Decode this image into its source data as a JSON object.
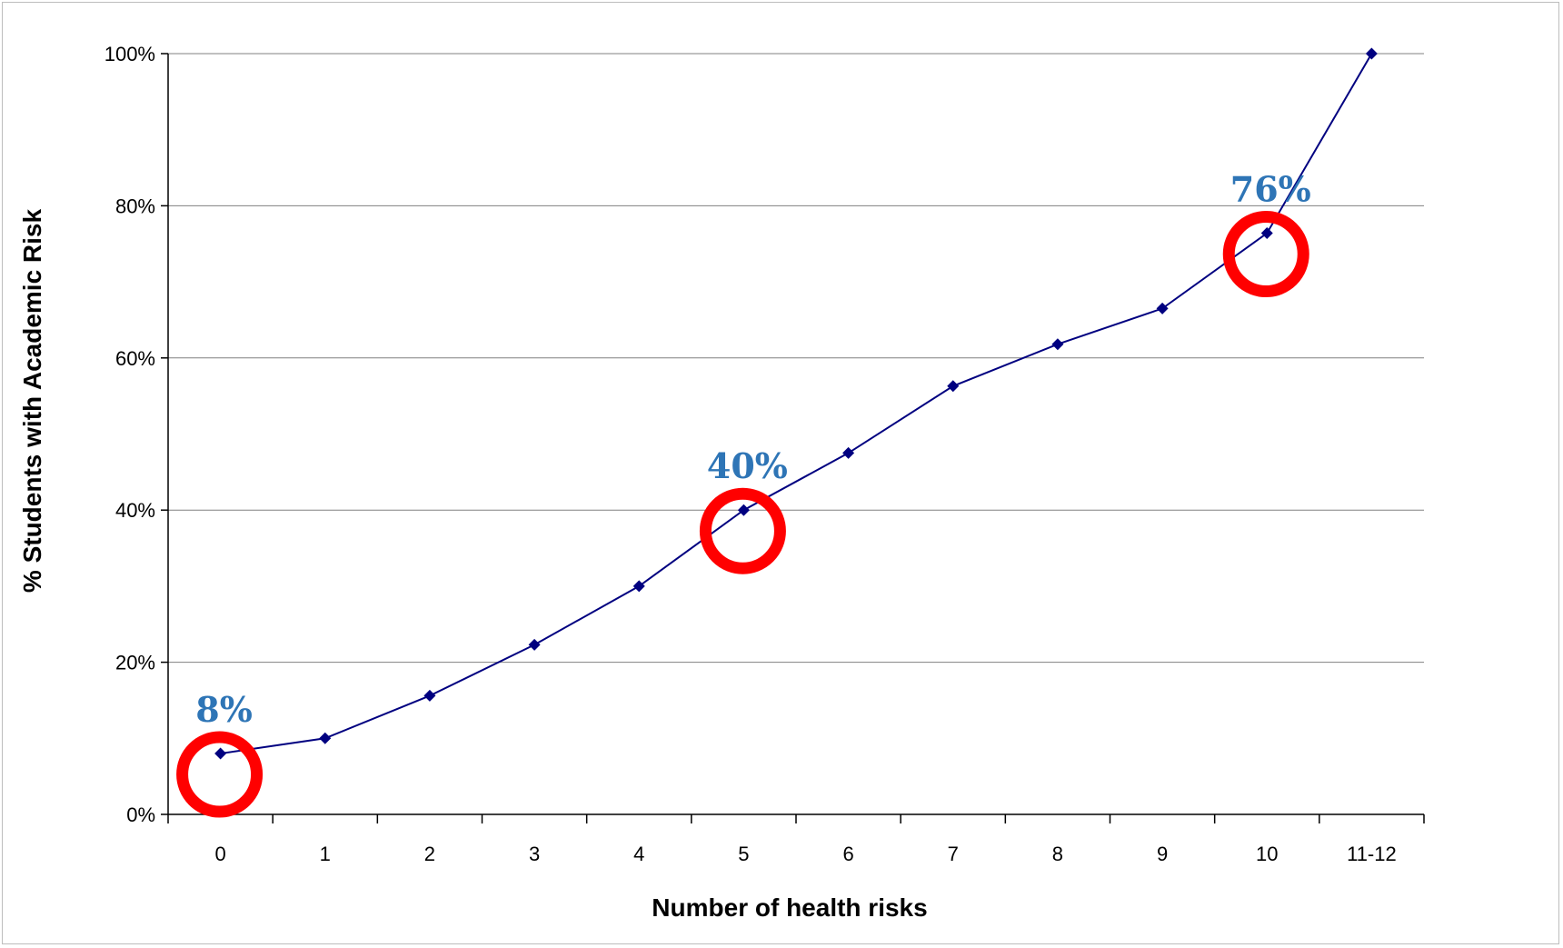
{
  "chart_data": {
    "type": "line",
    "xlabel": "Number of health risks",
    "ylabel": "% Students with Academic Risk",
    "categories": [
      "0",
      "1",
      "2",
      "3",
      "4",
      "5",
      "6",
      "7",
      "8",
      "9",
      "10",
      "11-12"
    ],
    "ylim": [
      0,
      100
    ],
    "y_ticks": [
      0,
      20,
      40,
      60,
      80,
      100
    ],
    "y_tick_labels": [
      "0%",
      "20%",
      "40%",
      "60%",
      "80%",
      "100%"
    ],
    "series": [
      {
        "values": [
          8,
          10,
          15.6,
          22.3,
          30,
          40,
          47.5,
          56.3,
          61.8,
          66.5,
          76.4,
          100
        ]
      }
    ],
    "grid": "horizontal",
    "colors": {
      "line": "#000080",
      "marker": "#000080",
      "annotation_text": "#2E75B6",
      "highlight_circle": "#FF0000",
      "gridline": "#808080"
    },
    "annotations": [
      {
        "category": "0",
        "text": "8%"
      },
      {
        "category": "5",
        "text": "40%"
      },
      {
        "category": "10",
        "text": "76%"
      }
    ]
  }
}
